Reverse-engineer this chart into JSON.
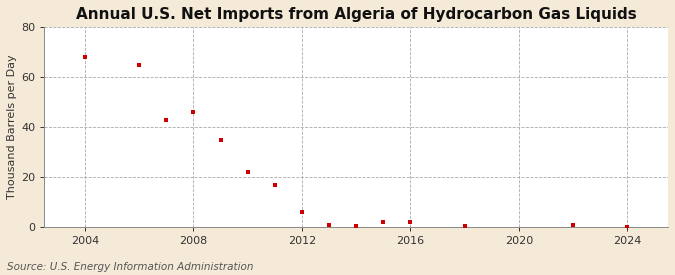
{
  "title": "Annual U.S. Net Imports from Algeria of Hydrocarbon Gas Liquids",
  "ylabel": "Thousand Barrels per Day",
  "source": "Source: U.S. Energy Information Administration",
  "background_color": "#f5ead8",
  "plot_background_color": "#ffffff",
  "marker_color": "#cc0000",
  "marker": "s",
  "marker_size": 3.5,
  "xlim": [
    2002.5,
    2025.5
  ],
  "ylim": [
    0,
    80
  ],
  "yticks": [
    0,
    20,
    40,
    60,
    80
  ],
  "xticks": [
    2004,
    2008,
    2012,
    2016,
    2020,
    2024
  ],
  "grid_color": "#aaaaaa",
  "title_fontsize": 11,
  "label_fontsize": 8,
  "tick_fontsize": 8,
  "source_fontsize": 7.5,
  "years": [
    2004,
    2006,
    2007,
    2008,
    2009,
    2010,
    2011,
    2012,
    2013,
    2014,
    2015,
    2016,
    2018,
    2022,
    2024
  ],
  "values": [
    68,
    65,
    43,
    46,
    35,
    22,
    17,
    6,
    1,
    0.5,
    2,
    2,
    0.3,
    1,
    0.2
  ]
}
